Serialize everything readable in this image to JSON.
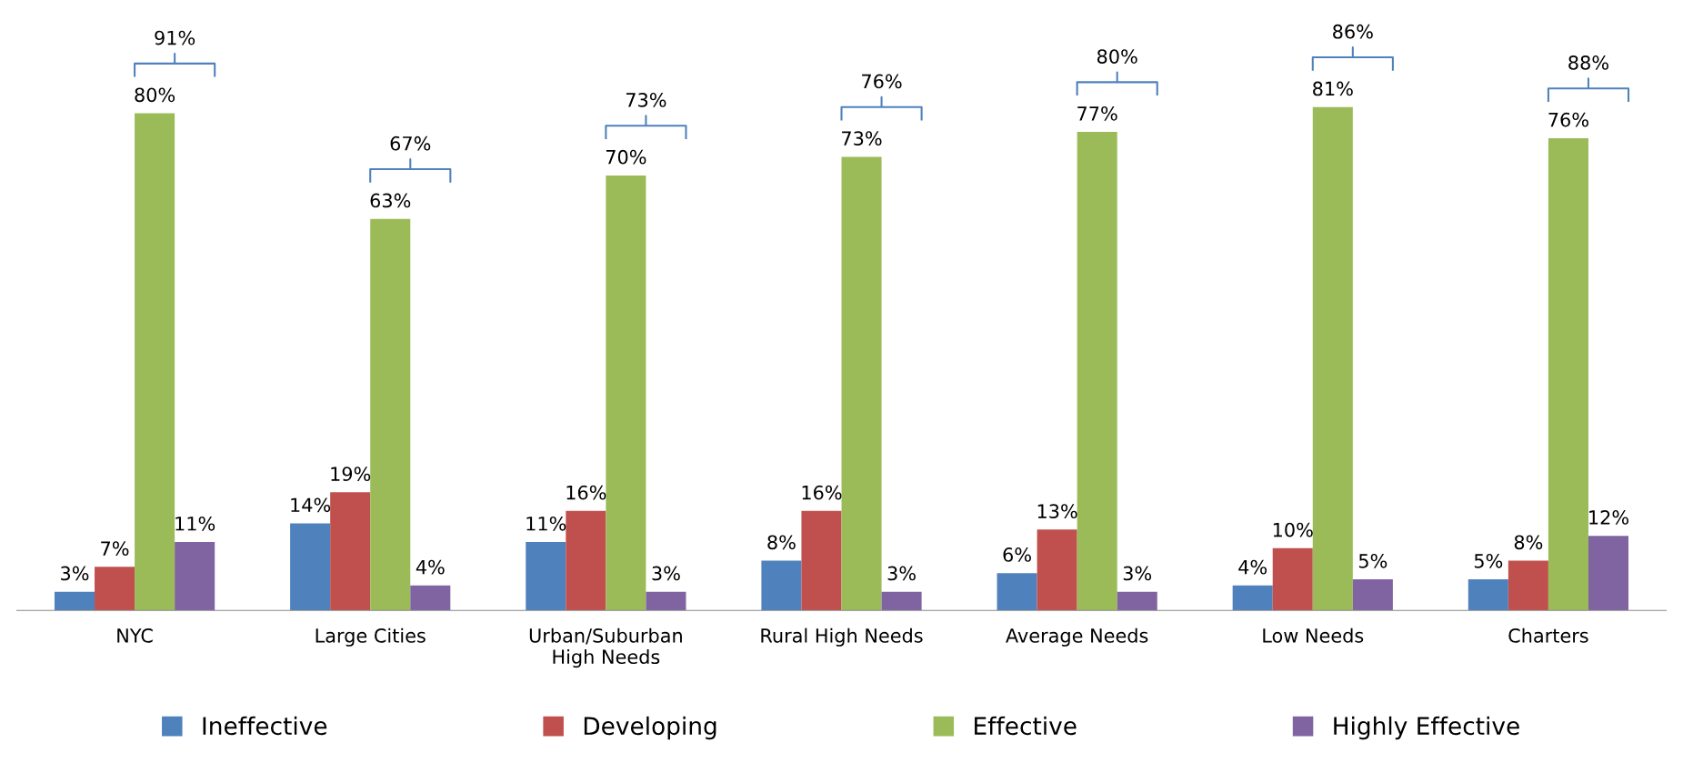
{
  "chart_data": {
    "type": "bar",
    "categories": [
      "NYC",
      "Large Cities",
      "Urban/Suburban\nHigh Needs",
      "Rural High Needs",
      "Average Needs",
      "Low Needs",
      "Charters"
    ],
    "series": [
      {
        "name": "Ineffective",
        "color": "#4f81bd",
        "values": [
          3,
          14,
          11,
          8,
          6,
          4,
          5
        ],
        "value_labels": [
          "3%",
          "14%",
          "11%",
          "8%",
          "6%",
          "4%",
          "5%"
        ]
      },
      {
        "name": "Developing",
        "color": "#c0504d",
        "values": [
          7,
          19,
          16,
          16,
          13,
          10,
          8
        ],
        "value_labels": [
          "7%",
          "19%",
          "16%",
          "16%",
          "13%",
          "10%",
          "8%"
        ]
      },
      {
        "name": "Effective",
        "color": "#9bbb59",
        "values": [
          80,
          63,
          70,
          73,
          77,
          81,
          76
        ],
        "value_labels": [
          "80%",
          "63%",
          "70%",
          "73%",
          "77%",
          "81%",
          "76%"
        ]
      },
      {
        "name": "Highly Effective",
        "color": "#8064a2",
        "values": [
          11,
          4,
          3,
          3,
          3,
          5,
          12
        ],
        "value_labels": [
          "11%",
          "4%",
          "3%",
          "3%",
          "3%",
          "5%",
          "12%"
        ]
      }
    ],
    "legend": "bottom",
    "annotations": [
      "91%",
      "67%",
      "73%",
      "76%",
      "80%",
      "86%",
      "88%"
    ]
  }
}
